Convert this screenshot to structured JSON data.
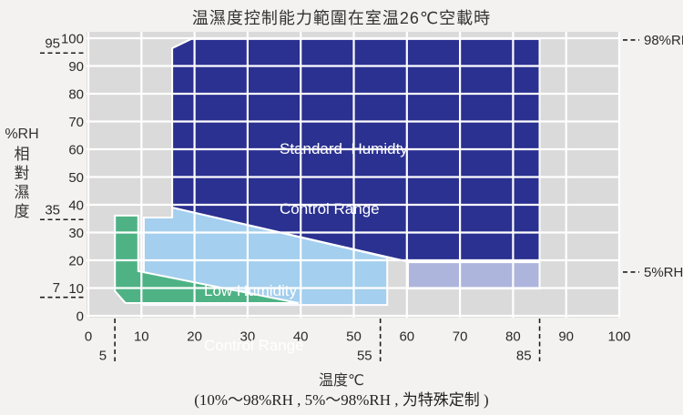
{
  "chart_data": {
    "type": "area",
    "title": "温濕度控制能力範圍在室温26℃空載時",
    "xlabel": "温度℃",
    "ylabel_unit": "%RH",
    "ylabel_vertical": "相對濕度",
    "note": "(10%～98%RH , 5%～98%RH , 为特殊定制 )",
    "xlim": [
      0,
      100
    ],
    "ylim": [
      0,
      100
    ],
    "grid": true,
    "x_ticks": [
      0,
      10,
      20,
      30,
      40,
      50,
      60,
      70,
      80,
      90,
      100
    ],
    "y_ticks": [
      0,
      10,
      20,
      30,
      40,
      50,
      60,
      70,
      80,
      90,
      100
    ],
    "x_dashed_marks": [
      {
        "value": 5,
        "label": "5"
      },
      {
        "value": 55,
        "label": "55"
      },
      {
        "value": 85,
        "label": "85"
      }
    ],
    "y_dashed_marks": [
      {
        "value": 95,
        "label": "95"
      },
      {
        "value": 35,
        "label": "35"
      },
      {
        "value": 7,
        "label": "7"
      }
    ],
    "right_annotations": [
      {
        "value": 99.7,
        "label": "98%RH"
      },
      {
        "value": 16.1,
        "label": "5%RH"
      }
    ],
    "colors": {
      "standard": "#2b3190",
      "extension": "#aeb5dc",
      "low": "#a4cfee",
      "low_special": "#4eb285",
      "plot_bg": "#dadada",
      "grid": "#ffffff",
      "page_bg": "#f3f2f0",
      "text": "#2b2b2b",
      "region_label_text": "#ffffff"
    },
    "regions": [
      {
        "id": "standard-humidity",
        "line1": "Standard  Humidty",
        "line2": "Control Range",
        "color": "#2b3190",
        "points": [
          [
            15.8,
            39.0
          ],
          [
            15.8,
            96.4
          ],
          [
            19.4,
            99.7
          ],
          [
            85,
            99.7
          ],
          [
            85,
            19.7
          ],
          [
            59.7,
            19.7
          ]
        ]
      },
      {
        "id": "standard-5rh-extension",
        "line1": "",
        "line2": "",
        "color": "#aeb5dc",
        "points": [
          [
            60.2,
            19.3
          ],
          [
            85,
            19.3
          ],
          [
            85,
            9.8
          ],
          [
            60.2,
            9.8
          ]
        ]
      },
      {
        "id": "low-humidity",
        "line1": "Low Humidity",
        "line2": "Control Range",
        "color": "#a4cfee",
        "points": [
          [
            10.45,
            3.9
          ],
          [
            10.45,
            35.4
          ],
          [
            15.8,
            35.4
          ],
          [
            15.8,
            39.0
          ],
          [
            56.3,
            21.0
          ],
          [
            56.3,
            3.9
          ]
        ]
      },
      {
        "id": "low-humidity-special",
        "line1": "",
        "line2": "",
        "color": "#4eb285",
        "points": [
          [
            5,
            36.1
          ],
          [
            9.4,
            36.1
          ],
          [
            9.4,
            16.1
          ],
          [
            39.6,
            4.6
          ],
          [
            7.0,
            4.6
          ],
          [
            5,
            8.9
          ]
        ]
      }
    ]
  }
}
